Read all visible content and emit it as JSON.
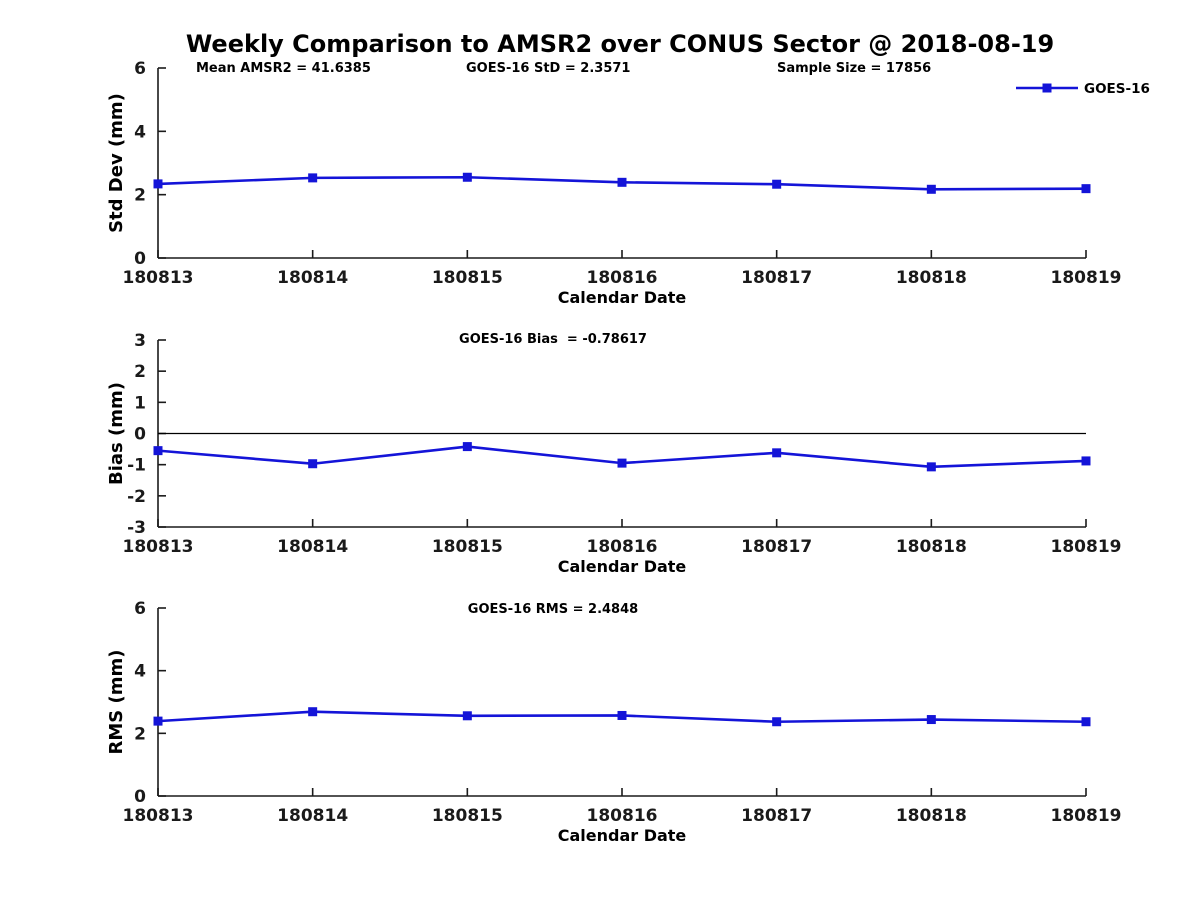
{
  "figure": {
    "title": "Weekly Comparison to AMSR2 over CONUS Sector @ 2018-08-19",
    "legend": {
      "label": "GOES-16",
      "position": "top-right-outside"
    },
    "colors": {
      "series": "#1414d8",
      "axis": "#1a1a1a",
      "text": "#000000",
      "zero_line": "#000000",
      "background": "#ffffff"
    }
  },
  "chart_data": [
    {
      "type": "line",
      "title": "Weekly Comparison to AMSR2 over CONUS Sector @ 2018-08-19",
      "annotations": [
        "Mean AMSR2 = 41.6385",
        "GOES-16 StD = 2.3571",
        "Sample Size = 17856"
      ],
      "ylabel": "Std Dev (mm)",
      "xlabel": "Calendar Date",
      "categories": [
        "180813",
        "180814",
        "180815",
        "180816",
        "180817",
        "180818",
        "180819"
      ],
      "series": [
        {
          "name": "GOES-16",
          "values": [
            2.34,
            2.53,
            2.55,
            2.39,
            2.33,
            2.17,
            2.19
          ]
        }
      ],
      "ylim": [
        0,
        6
      ],
      "yticks": [
        0,
        2,
        4,
        6
      ],
      "zero_line": false,
      "grid": false,
      "legend_entries": [
        "GOES-16"
      ]
    },
    {
      "type": "line",
      "subtitle": "GOES-16 Bias  = -0.78617",
      "ylabel": "Bias (mm)",
      "xlabel": "Calendar Date",
      "categories": [
        "180813",
        "180814",
        "180815",
        "180816",
        "180817",
        "180818",
        "180819"
      ],
      "series": [
        {
          "name": "GOES-16",
          "values": [
            -0.55,
            -0.97,
            -0.42,
            -0.95,
            -0.62,
            -1.07,
            -0.88
          ]
        }
      ],
      "ylim": [
        -3,
        3
      ],
      "yticks": [
        -3,
        -2,
        -1,
        0,
        1,
        2,
        3
      ],
      "zero_line": true,
      "grid": false
    },
    {
      "type": "line",
      "subtitle": "GOES-16 RMS = 2.4848",
      "ylabel": "RMS (mm)",
      "xlabel": "Calendar Date",
      "categories": [
        "180813",
        "180814",
        "180815",
        "180816",
        "180817",
        "180818",
        "180819"
      ],
      "series": [
        {
          "name": "GOES-16",
          "values": [
            2.39,
            2.69,
            2.56,
            2.57,
            2.37,
            2.44,
            2.37
          ]
        }
      ],
      "ylim": [
        0,
        6
      ],
      "yticks": [
        0,
        2,
        4,
        6
      ],
      "zero_line": false,
      "grid": false
    }
  ]
}
